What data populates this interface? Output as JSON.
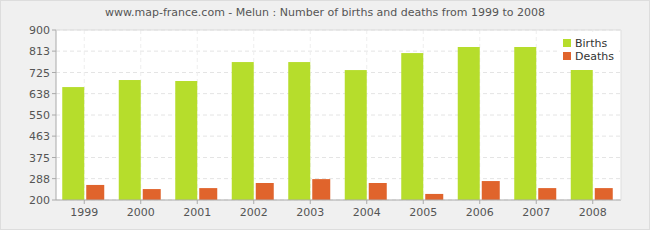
{
  "chart_data": {
    "type": "bar",
    "title": "www.map-france.com - Melun : Number of births and deaths from 1999 to 2008",
    "categories": [
      "1999",
      "2000",
      "2001",
      "2002",
      "2003",
      "2004",
      "2005",
      "2006",
      "2007",
      "2008"
    ],
    "series": [
      {
        "name": "Births",
        "color": "#b6dd2c",
        "values": [
          665,
          694,
          690,
          768,
          768,
          735,
          805,
          830,
          830,
          763
        ]
      },
      {
        "name": "Deaths",
        "color": "#e0642c",
        "values": [
          262,
          245,
          249,
          270,
          286,
          270,
          225,
          278,
          249,
          249
        ]
      }
    ],
    "ylim": [
      200,
      900
    ],
    "yticks": [
      200,
      288,
      375,
      463,
      550,
      638,
      725,
      813,
      900
    ],
    "grid": true,
    "legend": "top-right"
  }
}
